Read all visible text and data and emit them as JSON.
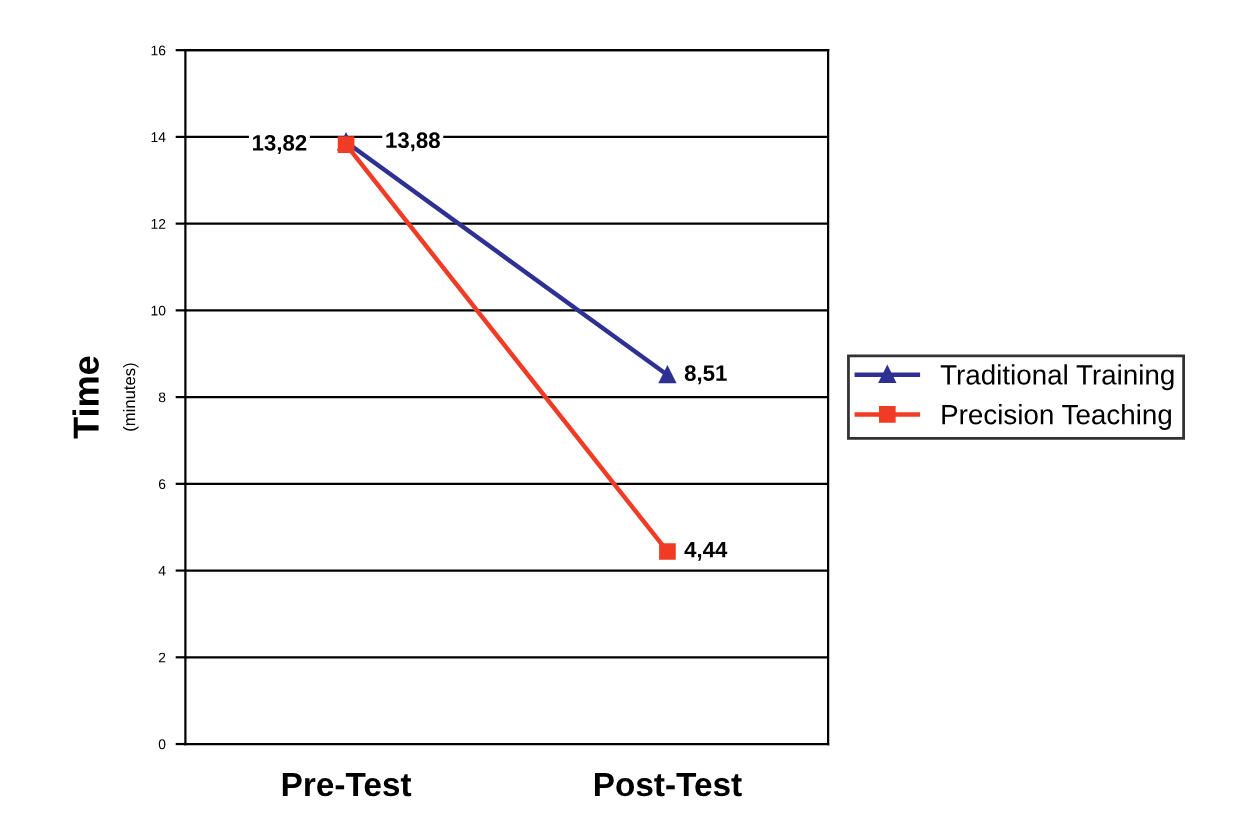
{
  "chart_data": {
    "type": "line",
    "ylabel": "Time",
    "annotations": [
      "(minutes)"
    ],
    "categories": [
      "Pre-Test",
      "Post-Test"
    ],
    "series": [
      {
        "name": "Traditional Training",
        "color": "#2e3192",
        "marker": "triangle",
        "values": [
          13.88,
          8.51
        ],
        "value_labels": [
          "13,88",
          "8,51"
        ]
      },
      {
        "name": "Precision Teaching",
        "color": "#f03c24",
        "marker": "square",
        "values": [
          13.82,
          4.44
        ],
        "value_labels": [
          "13,82",
          "4,44"
        ]
      }
    ],
    "ylim": [
      0,
      16
    ],
    "yticks": [
      0,
      2,
      4,
      6,
      8,
      10,
      12,
      14,
      16
    ],
    "grid": "y",
    "legend": "right"
  }
}
